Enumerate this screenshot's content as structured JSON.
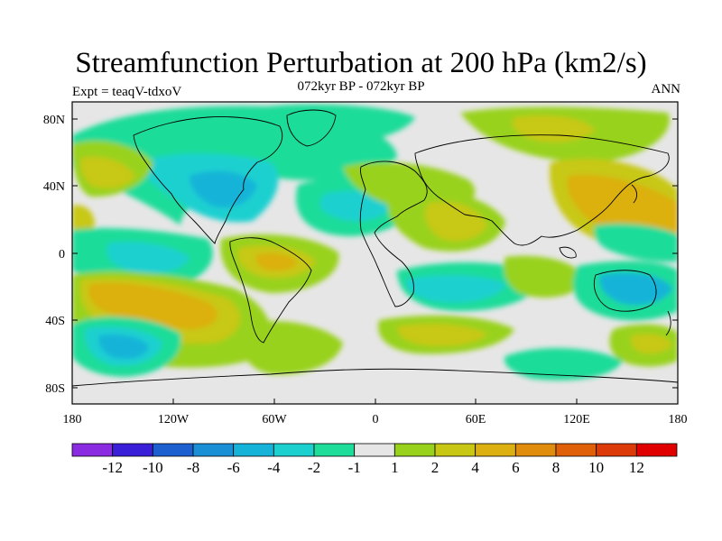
{
  "header": {
    "title": "Streamfunction Perturbation at 200 hPa (km2/s)",
    "subtitle": "072kyr BP - 072kyr BP",
    "left_label": "Expt = teaqV-tdxoV",
    "right_label": "ANN"
  },
  "axes": {
    "lat_ticks": [
      "80N",
      "40N",
      "0",
      "40S",
      "80S"
    ],
    "lon_ticks": [
      "180",
      "120W",
      "60W",
      "0",
      "60E",
      "120E",
      "180"
    ]
  },
  "colorbar": {
    "labels": [
      "-12",
      "-10",
      "-8",
      "-6",
      "-4",
      "-2",
      "-1",
      "1",
      "2",
      "4",
      "6",
      "8",
      "10",
      "12"
    ],
    "colors": [
      "#8a2be2",
      "#3a1fd8",
      "#1e5fd0",
      "#1a8fd6",
      "#16b3d8",
      "#1cd0d0",
      "#1edc9a",
      "#e6e6e6",
      "#99d21c",
      "#c8c814",
      "#dcb010",
      "#e08c0c",
      "#e0600a",
      "#dc3a08",
      "#e00000"
    ]
  },
  "palette": {
    "land_neutral": "#e6e6e6",
    "frame": "#000000"
  }
}
